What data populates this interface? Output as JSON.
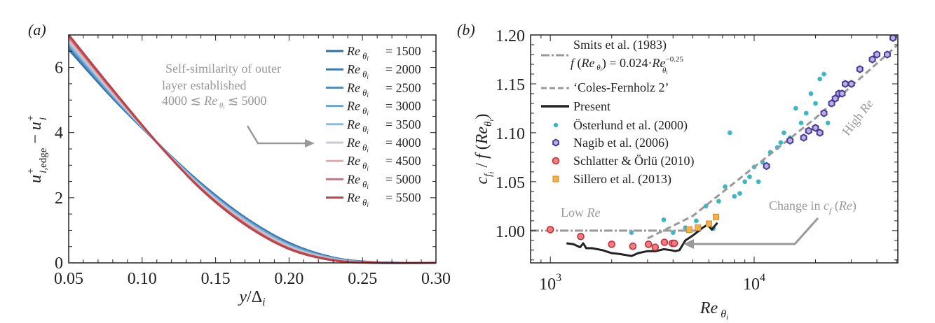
{
  "chart_data": [
    {
      "panel_label": "(a)",
      "type": "line",
      "title": "",
      "xlabel": "y/Δ_i",
      "ylabel": "u⁺_{i,edge} − u⁺_i",
      "xlim": [
        0.05,
        0.3
      ],
      "ylim": [
        0,
        7
      ],
      "xticks": [
        0.05,
        0.1,
        0.15,
        0.2,
        0.25,
        0.3
      ],
      "xtick_labels": [
        "0.05",
        "0.10",
        "0.15",
        "0.20",
        "0.25",
        "0.30"
      ],
      "yticks": [
        0,
        2,
        4,
        6
      ],
      "ytick_labels": [
        "0",
        "2",
        "4",
        "6"
      ],
      "legend_position": "top-right",
      "series": [
        {
          "name": "Re_θi = 1500",
          "label_value": "1500",
          "color": "#2f6fa6",
          "x": [
            0.05,
            0.08,
            0.11,
            0.14,
            0.17,
            0.2,
            0.23,
            0.26,
            0.3
          ],
          "y": [
            6.55,
            5.05,
            3.7,
            2.45,
            1.4,
            0.62,
            0.17,
            0.02,
            0.0
          ]
        },
        {
          "name": "Re_θi = 2000",
          "label_value": "2000",
          "color": "#3a7ab3",
          "x": [
            0.05,
            0.08,
            0.11,
            0.14,
            0.17,
            0.2,
            0.23,
            0.26,
            0.3
          ],
          "y": [
            6.6,
            5.08,
            3.7,
            2.43,
            1.38,
            0.6,
            0.16,
            0.02,
            0.0
          ]
        },
        {
          "name": "Re_θi = 2500",
          "label_value": "2500",
          "color": "#4d8cc2",
          "x": [
            0.05,
            0.08,
            0.11,
            0.14,
            0.17,
            0.2,
            0.23,
            0.26,
            0.3
          ],
          "y": [
            6.65,
            5.1,
            3.7,
            2.41,
            1.36,
            0.58,
            0.15,
            0.02,
            0.0
          ]
        },
        {
          "name": "Re_θi = 3000",
          "label_value": "3000",
          "color": "#6aa3d0",
          "x": [
            0.05,
            0.08,
            0.11,
            0.14,
            0.17,
            0.2,
            0.23,
            0.26,
            0.3
          ],
          "y": [
            6.7,
            5.13,
            3.7,
            2.39,
            1.34,
            0.56,
            0.14,
            0.01,
            0.0
          ]
        },
        {
          "name": "Re_θi = 3500",
          "label_value": "3500",
          "color": "#8dbbdc",
          "x": [
            0.05,
            0.08,
            0.11,
            0.14,
            0.17,
            0.2,
            0.23,
            0.26,
            0.3
          ],
          "y": [
            6.75,
            5.16,
            3.7,
            2.37,
            1.31,
            0.53,
            0.13,
            0.01,
            0.0
          ]
        },
        {
          "name": "Re_θi = 4000",
          "label_value": "4000",
          "color": "#c9cdd3",
          "x": [
            0.05,
            0.08,
            0.11,
            0.14,
            0.17,
            0.2,
            0.23,
            0.26,
            0.3
          ],
          "y": [
            6.82,
            5.2,
            3.7,
            2.34,
            1.27,
            0.5,
            0.11,
            0.01,
            0.0
          ]
        },
        {
          "name": "Re_θi = 4500",
          "label_value": "4500",
          "color": "#e3a9ad",
          "x": [
            0.05,
            0.08,
            0.11,
            0.14,
            0.17,
            0.2,
            0.23,
            0.26,
            0.3
          ],
          "y": [
            6.88,
            5.24,
            3.7,
            2.31,
            1.24,
            0.47,
            0.1,
            0.01,
            0.0
          ]
        },
        {
          "name": "Re_θi = 5000",
          "label_value": "5000",
          "color": "#d2727a",
          "x": [
            0.05,
            0.08,
            0.11,
            0.14,
            0.17,
            0.2,
            0.23,
            0.26,
            0.3
          ],
          "y": [
            6.94,
            5.28,
            3.7,
            2.29,
            1.21,
            0.45,
            0.09,
            0.0,
            0.0
          ]
        },
        {
          "name": "Re_θi = 5500",
          "label_value": "5500",
          "color": "#b9444c",
          "x": [
            0.05,
            0.08,
            0.11,
            0.14,
            0.17,
            0.2,
            0.23,
            0.26,
            0.3
          ],
          "y": [
            7.0,
            5.32,
            3.7,
            2.27,
            1.18,
            0.43,
            0.08,
            0.0,
            0.0
          ]
        }
      ],
      "legend_prefix": "Re",
      "legend_subscript": "θi",
      "legend_eq": "=",
      "annotation": {
        "lines": [
          "Self-similarity of outer",
          "layer established",
          "4000 ≲ Re θi ≲ 5000"
        ],
        "arrow": "points-to-legend"
      }
    },
    {
      "panel_label": "(b)",
      "type": "scatter",
      "title": "",
      "xlabel": "Re_θi",
      "ylabel": "c_fi / f(Re_θi)",
      "xscale": "log",
      "xlim": [
        800,
        50700
      ],
      "ylim": [
        0.967,
        1.2
      ],
      "xtick_labels": [
        "10³",
        "10⁴"
      ],
      "xticks": [
        1000,
        10000
      ],
      "yticks": [
        1.0,
        1.05,
        1.1,
        1.15,
        1.2
      ],
      "ytick_labels": [
        "1.00",
        "1.05",
        "1.10",
        "1.15",
        "1.20"
      ],
      "legend_position": "top-left",
      "legend": [
        {
          "label_line1": "Smits et al. (1983)",
          "label_line2": "f (Re θi) = 0.024·Re θi^−0.25",
          "style": "dash-dot",
          "color": "#999999"
        },
        {
          "label": "‘Coles-Fernholz 2’",
          "style": "dashed",
          "color": "#999999"
        },
        {
          "label": "Present",
          "style": "solid",
          "color": "#222222"
        },
        {
          "label": "Österlund et al. (2000)",
          "marker": "dot",
          "color": "#3cb6c2"
        },
        {
          "label": "Nagib et al. (2006)",
          "marker": "hexagon",
          "color": "#5b4aa0"
        },
        {
          "label": "Schlatter & Örlü (2010)",
          "marker": "circle",
          "color": "#d9474f"
        },
        {
          "label": "Sillero et al. (2013)",
          "marker": "square",
          "color": "#f0a12b"
        }
      ],
      "series": [
        {
          "name": "Smits et al. (1983)",
          "type": "line",
          "x": [
            800,
            5500
          ],
          "y": [
            1.0,
            1.0
          ]
        },
        {
          "name": "Coles-Fernholz 2",
          "type": "line",
          "x": [
            3000,
            5000,
            10000,
            20000,
            50700
          ],
          "y": [
            0.992,
            1.015,
            1.065,
            1.115,
            1.19
          ]
        },
        {
          "name": "Present",
          "type": "line",
          "x": [
            1200,
            1300,
            1400,
            1450,
            1500,
            1600,
            1800,
            2000,
            2200,
            2500,
            2700,
            3000,
            3300,
            3600,
            3900,
            4100,
            4300,
            4600,
            5000,
            5300,
            5600,
            5900,
            6200,
            6600
          ],
          "y": [
            0.987,
            0.986,
            0.983,
            0.987,
            0.982,
            0.982,
            0.98,
            0.977,
            0.976,
            0.974,
            0.977,
            0.979,
            0.979,
            0.981,
            0.98,
            0.979,
            0.98,
            0.99,
            0.995,
            0.999,
            1.003,
            1.006,
            1.001,
            1.008
          ]
        },
        {
          "name": "Österlund et al. (2000)",
          "type": "scatter",
          "x": [
            2500,
            3600,
            4000,
            4600,
            5200,
            5800,
            6300,
            6700,
            7200,
            7600,
            8000,
            8500,
            9000,
            9500,
            10000,
            10500,
            11000,
            12000,
            13000,
            13500,
            14000,
            15000,
            16000,
            17000,
            18000,
            19000,
            20000,
            21000,
            22000,
            23000
          ],
          "y": [
            0.998,
            1.011,
            0.998,
            1.003,
            1.01,
            1.025,
            1.002,
            1.03,
            1.045,
            1.1,
            1.035,
            1.038,
            1.05,
            1.055,
            1.065,
            1.05,
            1.07,
            1.08,
            1.085,
            1.09,
            1.1,
            1.095,
            1.125,
            1.11,
            1.12,
            1.14,
            1.13,
            1.155,
            1.16,
            1.11
          ]
        },
        {
          "name": "Nagib et al. (2006)",
          "type": "scatter",
          "x": [
            11500,
            15000,
            17500,
            18500,
            20000,
            21000,
            22000,
            24000,
            25000,
            26000,
            27000,
            28000,
            30000,
            33000,
            38000,
            40000,
            45000,
            48000
          ],
          "y": [
            1.066,
            1.092,
            1.095,
            1.102,
            1.105,
            1.1,
            1.12,
            1.13,
            1.135,
            1.14,
            1.14,
            1.15,
            1.15,
            1.165,
            1.175,
            1.18,
            1.18,
            1.197
          ]
        },
        {
          "name": "Schlatter & Örlü (2010)",
          "type": "scatter",
          "x": [
            1000,
            1410,
            2000,
            2540,
            3030,
            3270,
            3630,
            3970,
            4060
          ],
          "y": [
            1.001,
            0.994,
            0.986,
            0.984,
            0.986,
            0.983,
            0.988,
            0.987,
            0.987
          ]
        },
        {
          "name": "Sillero et al. (2013)",
          "type": "scatter",
          "x": [
            4800,
            5300,
            6000,
            6500
          ],
          "y": [
            1.001,
            1.003,
            1.007,
            1.014
          ]
        }
      ],
      "annotations": [
        {
          "text_plain": "Low",
          "text_italic": "Re"
        },
        {
          "text_plain": "High",
          "text_italic": "Re"
        },
        {
          "text_plain": "Change in",
          "text_italic": "c f (Re)"
        }
      ]
    }
  ]
}
